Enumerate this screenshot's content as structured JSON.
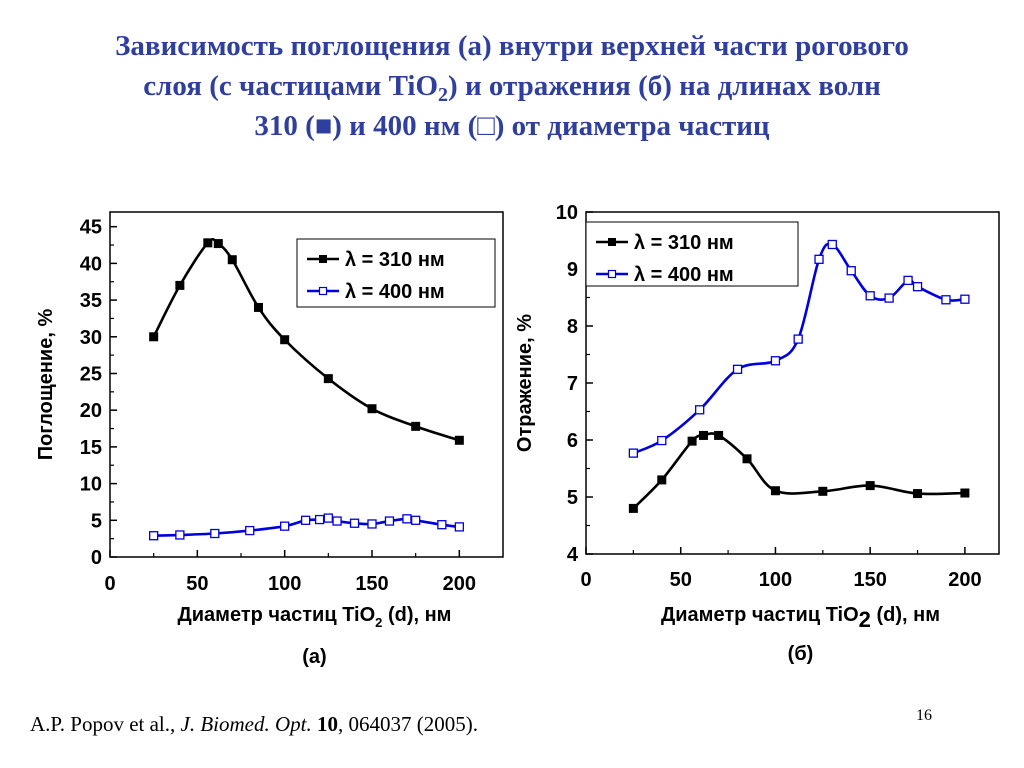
{
  "slide": {
    "title_line1": "Зависимость поглощения (а) внутри верхней части рогового",
    "title_line2_a": "слоя (с частицами TiO",
    "title_line2_sub": "2",
    "title_line2_b": ") и отражения (б) на длинах волн",
    "title_line3": "310 (■) и 400 нм (□) от диаметра частиц",
    "footer_authors": "A.P. Popov et al., ",
    "footer_journal": "J. Biomed. Opt.",
    "footer_space": " ",
    "footer_volume": "10",
    "footer_rest": ", 064037 (2005).",
    "page_number": "16"
  },
  "chart_data": [
    {
      "type": "line",
      "panel_label": "(а)",
      "xlabel_main": "Диаметр частиц TiO",
      "xlabel_sub": "2",
      "xlabel_tail": " (d), нм",
      "ylabel": "Поглощение, %",
      "xlim": [
        0,
        225
      ],
      "ylim": [
        0,
        47
      ],
      "xticks": [
        0,
        50,
        100,
        150,
        200
      ],
      "yticks": [
        0,
        5,
        10,
        15,
        20,
        25,
        30,
        35,
        40,
        45
      ],
      "legend_position": "top-right",
      "series": [
        {
          "name": "λ = 310 нм",
          "color": "#000000",
          "marker": "filled-square",
          "x": [
            25,
            40,
            56,
            62,
            70,
            85,
            100,
            125,
            150,
            175,
            200
          ],
          "y": [
            30.0,
            37.0,
            42.8,
            42.7,
            40.5,
            34.0,
            29.6,
            24.3,
            20.2,
            17.8,
            15.9
          ]
        },
        {
          "name": "λ = 400 нм",
          "color": "#0000dd",
          "marker": "open-square",
          "x": [
            25,
            40,
            60,
            80,
            100,
            112,
            120,
            125,
            130,
            140,
            150,
            160,
            170,
            175,
            190,
            200
          ],
          "y": [
            2.9,
            3.0,
            3.2,
            3.6,
            4.2,
            5.0,
            5.1,
            5.3,
            4.9,
            4.6,
            4.5,
            4.9,
            5.2,
            5.0,
            4.4,
            4.1
          ]
        }
      ]
    },
    {
      "type": "line",
      "panel_label": "(б)",
      "xlabel_main": "Диаметр частиц TiO",
      "xlabel_sub": "2",
      "xlabel_tail": " (d), нм",
      "ylabel": "Отражение, %",
      "xlim": [
        0,
        218
      ],
      "ylim": [
        4,
        10
      ],
      "xticks": [
        0,
        50,
        100,
        150,
        200
      ],
      "yticks": [
        4,
        5,
        6,
        7,
        8,
        9,
        10
      ],
      "legend_position": "top-right",
      "series": [
        {
          "name": "λ = 310 нм",
          "color": "#000000",
          "marker": "filled-square",
          "x": [
            25,
            40,
            56,
            62,
            70,
            85,
            100,
            125,
            150,
            175,
            200
          ],
          "y": [
            4.8,
            5.3,
            5.98,
            6.08,
            6.08,
            5.67,
            5.11,
            5.1,
            5.2,
            5.06,
            5.07
          ]
        },
        {
          "name": "λ = 400 нм",
          "color": "#0000dd",
          "marker": "open-square",
          "x": [
            25,
            40,
            60,
            80,
            100,
            112,
            123,
            130,
            140,
            150,
            160,
            170,
            175,
            190,
            200
          ],
          "y": [
            5.77,
            5.99,
            6.53,
            7.24,
            7.39,
            7.77,
            9.17,
            9.43,
            8.97,
            8.53,
            8.49,
            8.8,
            8.69,
            8.46,
            8.47
          ]
        }
      ]
    }
  ]
}
